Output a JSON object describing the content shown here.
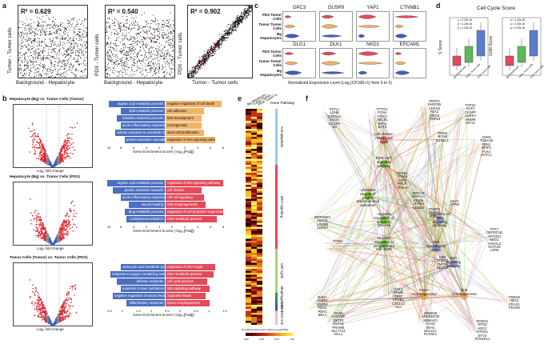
{
  "panels": {
    "a": "a",
    "b": "b",
    "c": "c",
    "d": "d",
    "e": "e",
    "f": "f"
  },
  "panel_a": {
    "plots": [
      {
        "r2": "R² = 0.629",
        "ylabel": "Tumor - Tumor cells",
        "xlabel": "Background - Hepatocyte"
      },
      {
        "r2": "R² = 0.540",
        "ylabel": "PDX - Tumor cells",
        "xlabel": "Background - Hepatocyte"
      },
      {
        "r2": "R² = 0.902",
        "ylabel": "PDX - Tumor cells",
        "xlabel": "Tumor - Tumor cells"
      }
    ]
  },
  "panel_b": {
    "rows": [
      {
        "title": "Hepatocyte (Bg) vs. Tumor Cells (Tumor)",
        "left": [
          "organic acid metabolic process",
          "lipid metabolic process",
          "oxidation-reduction process",
          "acute inflammatory response",
          "cellular response to xenobiotic stimulus",
          "protein activation cascade"
        ],
        "right": [
          "negative regulation of cell death",
          "cell adhesion",
          "limb development",
          "neurogenesis",
          "stem cell proliferation",
          "regulation of Wnt signaling pathway"
        ],
        "xlabel": "Gene Enrichment Scores (-log₁₀[Padj])",
        "ticks": [
          "10",
          "8",
          "6",
          "4",
          "2",
          "0",
          "2",
          "4",
          "6",
          "8"
        ]
      },
      {
        "title": "Hepatocyte (Bg) vs. Tumor Cells (PDX)",
        "left": [
          "organic acid metabolic process",
          "protein activation cascade",
          "acute inflammatory response",
          "wound healing",
          "drug metabolic process",
          "complement activation"
        ],
        "right": [
          "regulation of Wnt signaling pathway",
          "cell division",
          "cell-cell signaling",
          "limb morphogenesis",
          "regulation of cell projection organization",
          "DNA metabolic process"
        ],
        "xlabel": "Gene Enrichment Scores (-log₁₀[Padj])",
        "ticks": [
          "10",
          "8",
          "6",
          "4",
          "2",
          "0",
          "2",
          "4",
          "6",
          "8"
        ]
      },
      {
        "title": "Tumor Cells (Tumor) vs. Tumor Cells (PDX)",
        "left": [
          "carboxylic acid metabolic process",
          "response to oxygen-containing compound",
          "defense response",
          "response to toxic substance",
          "negative regulation of wound healing",
          "inflammatory response"
        ],
        "right": [
          "regulation of DNA repair",
          "DNA metabolic process",
          "cell cycle process",
          "Wnt signaling pathway",
          "organelle fission",
          "tissue morphogenesis"
        ],
        "xlabel": "Gene Enrichment Scores (-log₁₀[Padj])",
        "ticks": [
          "2.5",
          "2",
          "1.5",
          "1",
          "0.5",
          "0",
          "0.5",
          "1",
          "1.5"
        ]
      }
    ],
    "volcano_xlabel": "Log₂ fold change",
    "volcano_ylabel": "-Log₁₀ P"
  },
  "panel_c": {
    "genes_top": [
      "GPC3",
      "DUSP9",
      "YAP1",
      "CTNNB1"
    ],
    "genes_bottom": [
      "DLG1",
      "DLK1",
      "NKD1",
      "EPCAM1"
    ],
    "row_labels": [
      "PDX Tumor Cells",
      "Tumor Tumor Cells",
      "Bg Hepatocytes"
    ],
    "xlabel": "Normalized Expression Level (Log₂(CP10K+1) from 0 to 5)"
  },
  "panel_d": {
    "title": "Cell Cycle Score",
    "left_ylabel": "S Score",
    "right_ylabel": "G2M Score",
    "pvals": [
      "p < 2.22e-16",
      "p < 2.22e-16",
      "p < 2.22e-16"
    ],
    "groups": [
      "Bg Hepatocytes",
      "Tumor Tumor cells",
      "PDX Tumor cells"
    ]
  },
  "panel_e": {
    "header": [
      "Bg Hepatocytes",
      "Tumor Tumor cells",
      "PDX Tumor cells"
    ],
    "legend_title": "Gene Pathway",
    "pathways": [
      {
        "name": "Anti-apoptosis",
        "color": "#9cc8e6"
      },
      {
        "name": "WNT signaling",
        "color": "#e14b5a"
      },
      {
        "name": "Cell Cycle",
        "color": "#a8d37c"
      },
      {
        "name": "Morphogenesis",
        "color": "#2f8f58"
      },
      {
        "name": "C-MYC",
        "color": "#3a57a8"
      },
      {
        "name": "HOX Ank",
        "color": "#f2b9c9"
      }
    ],
    "scale_label": "Normalized Expression Values (Log₂[CPM])",
    "scale_ticks": [
      "0.00",
      "2.50",
      "5.00",
      "7.50"
    ]
  },
  "panel_f": {
    "nodes": [
      {
        "t": "cell division\nmitotic cell\ncycle"
      },
      {
        "t": "PI3K-AKT\nsignaling\npathway"
      },
      {
        "t": "Validated\ntargets of\nC-MYC\ntranscriptional\nactivation"
      },
      {
        "t": "negative\nregulation of\napoptotic\nprocess"
      },
      {
        "t": "negative\nregulation of\nprogrammed\ncell death"
      },
      {
        "t": "regulation of\nWnt\nsignaling\npathway"
      },
      {
        "t": "Wnt\nsignaling by\nCDK5"
      },
      {
        "t": "Wnt\nsignaling\npathway"
      },
      {
        "t": "tissue\nmorphogenesis"
      },
      {
        "t": "limb\nmorphogenesis"
      }
    ],
    "gene_labels": [
      {
        "t": "FSTL1\nLDHB\nCDKN1A\nSGO4\nCXCR4\nS3"
      },
      {
        "t": "PTTG1\nPCNA\nFBXO\nABCB1\nKIF11\nECT2"
      },
      {
        "t": "PRPF2\nPARP2B\nCDKN3\nPLK2\nGINS2\nTRIP13"
      },
      {
        "t": "TOP2A\nNUF2\nCENPF\nAURKA\nHMMR\nKIF14"
      },
      {
        "t": "RRM2\nMCM4\nDYNLL1"
      },
      {
        "t": "CDK6\nTUBA1B\nFBN1\nBRIP1\nPLK4\nKNTC1"
      },
      {
        "t": "SERPINE1\nPEG10\nLIN28B\nCDKN7"
      },
      {
        "t": "NFKB1\nITGA6\nATF5\nPRLR\nITGA6"
      },
      {
        "t": "EPCAM\nHSPA1A\nATAD5\nAPOE4\nCCND2"
      },
      {
        "t": "PSMF3\nSTMN1\nPSE1"
      },
      {
        "t": "NAV3\nAPPM"
      },
      {
        "t": "PTK7\nDEPDC1B\nAPCDD1\nNKD1\nVANGL2\nNOTUM\nLGR5"
      },
      {
        "t": "NADA\nFABP1\nHSPA8\nPDX1\nPDK4\nBEL1"
      },
      {
        "t": "PTMA"
      },
      {
        "t": "DHX9\nCACYBP\nGSTP1\nHSPH1\nPRAME\nSLC7A11\nNCL1"
      },
      {
        "t": "CHL1\nARGE\nOEIP\nEPHB2\nCXCL12\nVIL1"
      },
      {
        "t": "CBS\nTRMT11\nTMT16\nDCDC2"
      },
      {
        "t": "ZSWIM5\nARHGEF35\nSEMA4G\nDCK8\nSEH1\nBCL11A\nPLXNC1"
      },
      {
        "t": "ROBO1\nNTN3\nHEG1\nNTNG1\nETV4\nRTN4RL1"
      },
      {
        "t": "FREM2\nTBX3\nFRAS1\nPDSS5"
      }
    ]
  }
}
